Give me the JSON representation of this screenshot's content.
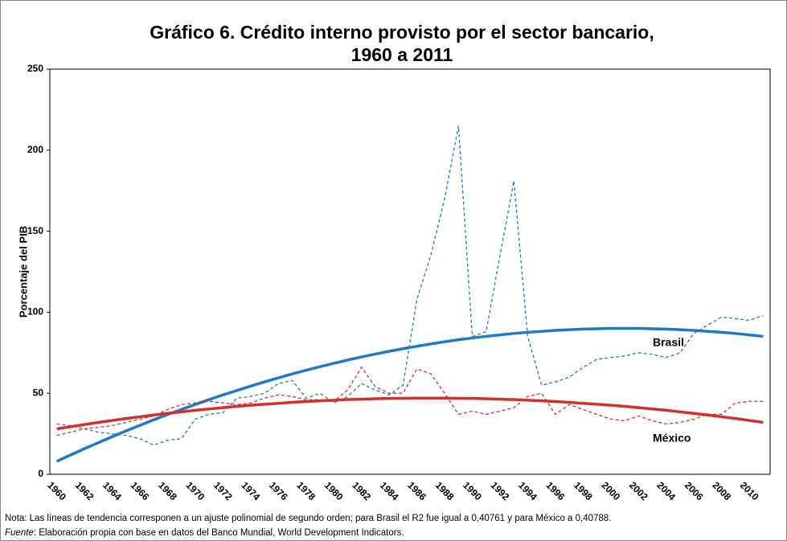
{
  "chart_data": {
    "type": "line",
    "title": [
      "Gráfico 6. Crédito interno provisto por el sector bancario,",
      "1960 a 2011"
    ],
    "y_label": "Porcentaje del PIB",
    "categories": [
      "1960",
      null,
      "1962",
      null,
      "1964",
      null,
      "1966",
      null,
      "1968",
      null,
      "1970",
      null,
      "1972",
      null,
      "1974",
      null,
      "1976",
      null,
      "1978",
      null,
      "1980",
      null,
      "1982",
      null,
      "1984",
      null,
      "1986",
      null,
      "1988",
      null,
      "1990",
      null,
      "1992",
      null,
      "1994",
      null,
      "1996",
      null,
      "1998",
      null,
      "2000",
      null,
      "2002",
      null,
      "2004",
      null,
      "2006",
      null,
      "2008",
      null,
      "2010",
      null
    ],
    "ylim": [
      0,
      250
    ],
    "yticks": [
      0,
      50,
      100,
      150,
      200,
      250
    ],
    "series": [
      {
        "name": "Brasil",
        "color": "#1f78c8",
        "values": [
          31,
          30,
          28,
          26,
          25,
          24,
          22,
          18,
          21,
          22,
          34,
          37,
          38,
          47,
          48,
          50,
          56,
          58,
          47,
          50,
          44,
          48,
          56,
          52,
          49,
          55,
          108,
          135,
          170,
          215,
          85,
          88,
          135,
          181,
          85,
          55,
          57,
          60,
          66,
          71,
          72,
          73,
          75,
          74,
          72,
          75,
          87,
          92,
          97,
          96,
          95,
          98
        ],
        "trend": [
          8.0,
          11.9,
          15.8,
          19.5,
          23.2,
          26.8,
          30.2,
          33.6,
          36.9,
          40.0,
          43.1,
          46.1,
          49.0,
          51.7,
          54.4,
          57.0,
          59.5,
          61.9,
          64.2,
          66.4,
          68.5,
          70.5,
          72.4,
          74.2,
          75.9,
          77.5,
          79.0,
          80.4,
          81.8,
          83.0,
          84.1,
          85.1,
          86.0,
          86.9,
          87.6,
          88.2,
          88.8,
          89.2,
          89.6,
          89.8,
          90.0,
          90.0,
          90.0,
          89.8,
          89.6,
          89.2,
          88.8,
          88.2,
          87.6,
          86.9,
          86.0,
          85.1
        ]
      },
      {
        "name": "México",
        "color": "#d0312d",
        "values": [
          24,
          26,
          28,
          29,
          30,
          32,
          34,
          36,
          40,
          43,
          44,
          45,
          44,
          43,
          44,
          47,
          49,
          48,
          46,
          46,
          45,
          52,
          66,
          54,
          50,
          50,
          65,
          62,
          50,
          37,
          39,
          37,
          39,
          41,
          48,
          50,
          37,
          43,
          40,
          37,
          34,
          33,
          36,
          33,
          31,
          32,
          34,
          37,
          37,
          44,
          45,
          45
        ],
        "trend": [
          28.0,
          29.4,
          30.7,
          32.0,
          33.2,
          34.4,
          35.5,
          36.6,
          37.6,
          38.5,
          39.5,
          40.3,
          41.1,
          41.9,
          42.6,
          43.2,
          43.8,
          44.4,
          44.9,
          45.3,
          45.7,
          46.1,
          46.3,
          46.6,
          46.8,
          46.9,
          47.0,
          47.0,
          47.0,
          46.9,
          46.8,
          46.6,
          46.3,
          46.1,
          45.7,
          45.3,
          44.9,
          44.4,
          43.8,
          43.2,
          42.6,
          41.9,
          41.1,
          40.3,
          39.5,
          38.5,
          37.6,
          36.6,
          35.5,
          34.4,
          33.2,
          32.0
        ]
      }
    ],
    "note": "Nota: Las líneas de tendencia corresponen a un ajuste polinomial de segundo orden; para Brasil el R2 fue igual a 0,40761 y para México a 0,40788.",
    "source_label": "Fuente",
    "source": ": Elaboración propia con base en datos del Banco Mundial, World Development Indicators."
  }
}
